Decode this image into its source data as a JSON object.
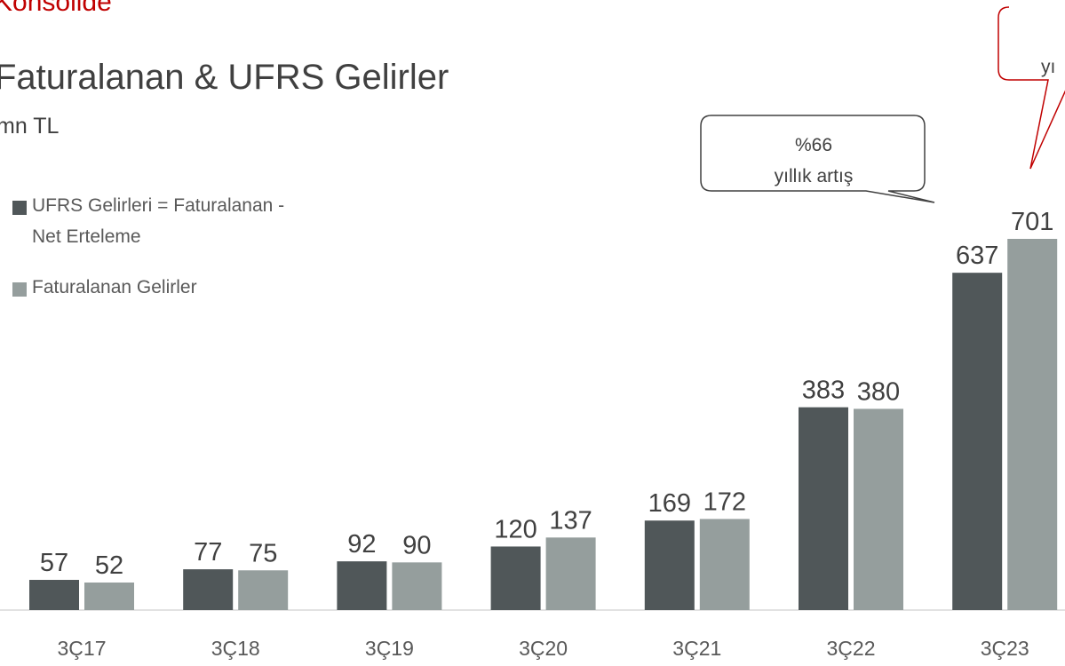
{
  "chart_data": {
    "type": "bar",
    "header": "Konsolide",
    "title": "Faturalanan & UFRS Gelirler",
    "subtitle": "mn TL",
    "categories": [
      "3Ç17",
      "3Ç18",
      "3Ç19",
      "3Ç20",
      "3Ç21",
      "3Ç22",
      "3Ç23"
    ],
    "series": [
      {
        "name": "UFRS Gelirleri = Faturalanan - Net Erteleme",
        "color": "#505759",
        "values": [
          57,
          77,
          92,
          120,
          169,
          383,
          637
        ]
      },
      {
        "name": "Faturalanan Gelirler",
        "color": "#959e9d",
        "values": [
          52,
          75,
          90,
          137,
          172,
          380,
          701
        ]
      }
    ],
    "annotations": [
      "%66",
      "yıllık artış",
      "yı"
    ]
  }
}
